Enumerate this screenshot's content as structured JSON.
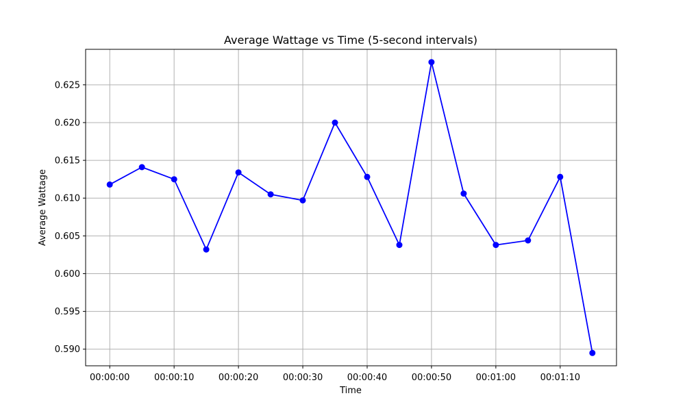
{
  "chart_data": {
    "type": "line",
    "title": "Average Wattage vs Time (5-second intervals)",
    "xlabel": "Time",
    "ylabel": "Average Wattage",
    "x": [
      "00:00:00",
      "00:00:05",
      "00:00:10",
      "00:00:15",
      "00:00:20",
      "00:00:25",
      "00:00:30",
      "00:00:35",
      "00:00:40",
      "00:00:45",
      "00:00:50",
      "00:00:55",
      "00:01:00",
      "00:01:05",
      "00:01:10",
      "00:01:15"
    ],
    "x_ticks": [
      "00:00:00",
      "00:00:10",
      "00:00:20",
      "00:00:30",
      "00:00:40",
      "00:00:50",
      "00:01:00",
      "00:01:10"
    ],
    "y_ticks": [
      0.59,
      0.595,
      0.6,
      0.605,
      0.61,
      0.615,
      0.62,
      0.625
    ],
    "y_tick_labels": [
      "0.590",
      "0.595",
      "0.600",
      "0.605",
      "0.610",
      "0.615",
      "0.620",
      "0.625"
    ],
    "series": [
      {
        "values": [
          0.6118,
          0.6141,
          0.6125,
          0.6032,
          0.6134,
          0.6105,
          0.6097,
          0.62,
          0.6128,
          0.6038,
          0.628,
          0.6106,
          0.6038,
          0.6044,
          0.6128,
          0.5895
        ],
        "color": "#0000ff",
        "marker": "circle"
      }
    ],
    "ylim": [
      0.5878,
      0.6297
    ],
    "xlim_seconds": [
      -3.75,
      78.75
    ],
    "grid": true,
    "grid_color": "#b0b0b0"
  }
}
